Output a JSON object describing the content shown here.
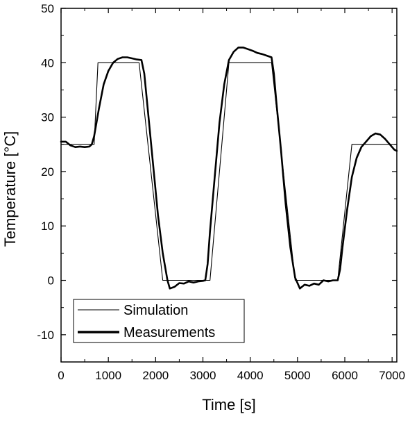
{
  "chart_data": {
    "type": "line",
    "xlabel": "Time [s]",
    "ylabel": "Temperature [°C]",
    "xlim": [
      0,
      7100
    ],
    "ylim": [
      -15,
      50
    ],
    "xticks": [
      0,
      1000,
      2000,
      3000,
      4000,
      5000,
      6000,
      7000
    ],
    "yticks": [
      -10,
      0,
      10,
      20,
      30,
      40,
      50
    ],
    "xtick_labels": [
      "0",
      "1000",
      "2000",
      "3000",
      "4000",
      "5000",
      "6000",
      "7000"
    ],
    "ytick_labels": [
      "-10",
      "0",
      "10",
      "20",
      "30",
      "40",
      "50"
    ],
    "grid": false,
    "legend_position": "bottom-left",
    "series": [
      {
        "name": "Simulation",
        "style": "thin",
        "color": "#000000",
        "x": [
          0,
          700,
          780,
          1650,
          2150,
          3150,
          3550,
          4450,
          4950,
          5850,
          6150,
          7100
        ],
        "y": [
          25,
          25,
          40,
          40,
          0,
          0,
          40,
          40,
          0,
          0,
          25,
          25
        ]
      },
      {
        "name": "Measurements",
        "style": "thick",
        "color": "#000000",
        "x": [
          0,
          100,
          200,
          300,
          400,
          500,
          600,
          650,
          700,
          800,
          900,
          1000,
          1100,
          1200,
          1300,
          1400,
          1500,
          1600,
          1700,
          1760,
          1850,
          1950,
          2050,
          2150,
          2250,
          2300,
          2400,
          2500,
          2600,
          2700,
          2800,
          2900,
          3000,
          3050,
          3100,
          3150,
          3250,
          3350,
          3450,
          3550,
          3650,
          3750,
          3850,
          3950,
          4050,
          4150,
          4250,
          4350,
          4450,
          4500,
          4550,
          4650,
          4750,
          4850,
          4950,
          5050,
          5150,
          5250,
          5350,
          5450,
          5550,
          5650,
          5750,
          5850,
          5900,
          5950,
          6050,
          6150,
          6250,
          6350,
          6450,
          6550,
          6650,
          6750,
          6850,
          6950,
          7050,
          7100
        ],
        "y": [
          25.5,
          25.5,
          24.8,
          24.5,
          24.6,
          24.5,
          24.6,
          25,
          26.5,
          31.5,
          36,
          38.5,
          40,
          40.7,
          41,
          41,
          40.8,
          40.6,
          40.5,
          38,
          30,
          21,
          12,
          5,
          0,
          -1.5,
          -1.2,
          -0.5,
          -0.6,
          -0.2,
          -0.4,
          -0.2,
          -0.1,
          0,
          3,
          9,
          19,
          29,
          36,
          40.5,
          42,
          42.8,
          42.8,
          42.5,
          42.2,
          41.8,
          41.6,
          41.3,
          41,
          38,
          33,
          24,
          14,
          6,
          0.5,
          -1.5,
          -0.8,
          -1,
          -0.6,
          -0.8,
          0,
          -0.2,
          0,
          0,
          2,
          6,
          13,
          19,
          22.5,
          24.5,
          25.5,
          26.5,
          27,
          26.8,
          26,
          25,
          24,
          23.8
        ]
      }
    ]
  }
}
